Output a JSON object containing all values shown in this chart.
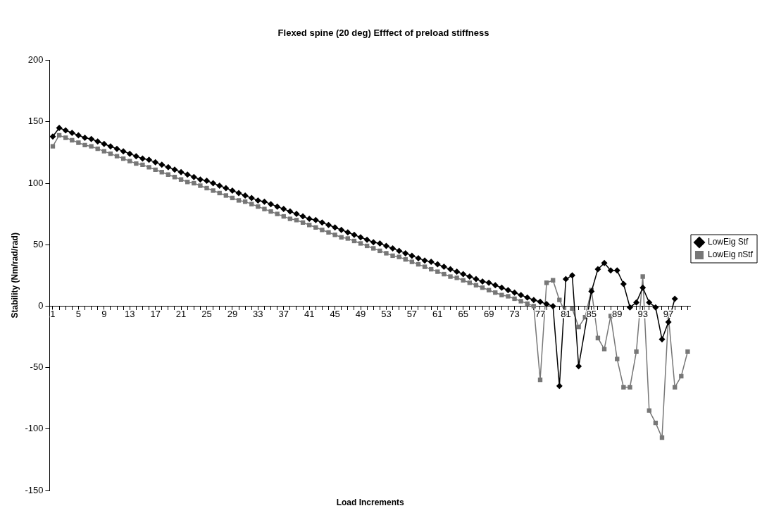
{
  "chart_data": {
    "type": "line",
    "title": "Flexed spine (20 deg) Efffect of preload stiffness",
    "xlabel": "Load Increments",
    "ylabel": "Stability (Nm/rad/rad)",
    "categories": [
      "1",
      null,
      null,
      null,
      "5",
      null,
      null,
      null,
      "9",
      null,
      null,
      null,
      "13",
      null,
      null,
      null,
      "17",
      null,
      null,
      null,
      "21",
      null,
      null,
      null,
      "25",
      null,
      null,
      null,
      "29",
      null,
      null,
      null,
      "33",
      null,
      null,
      null,
      "37",
      null,
      null,
      null,
      "41",
      null,
      null,
      null,
      "45",
      null,
      null,
      null,
      "49",
      null,
      null,
      null,
      "53",
      null,
      null,
      null,
      "57",
      null,
      null,
      null,
      "61",
      null,
      null,
      null,
      "65",
      null,
      null,
      null,
      "69",
      null,
      null,
      null,
      "73",
      null,
      null,
      null,
      "77",
      null,
      null,
      null,
      "81",
      null,
      null,
      null,
      "85",
      null,
      null,
      null,
      "89",
      null,
      null,
      null,
      "93",
      null,
      null,
      null,
      "97",
      null,
      null,
      null
    ],
    "series": [
      {
        "name": "LowEig Stf",
        "color": "#000000",
        "marker": "diamond",
        "values": [
          138,
          145,
          143,
          141,
          139,
          137,
          136,
          134,
          132,
          130,
          128,
          126,
          124,
          122,
          120,
          119,
          117,
          115,
          113,
          111,
          109,
          107,
          105,
          103,
          102,
          100,
          98,
          96,
          94,
          92,
          90,
          88,
          86,
          85,
          83,
          81,
          79,
          77,
          75,
          73,
          71,
          70,
          68,
          66,
          64,
          62,
          60,
          58,
          56,
          54,
          52,
          51,
          49,
          47,
          45,
          43,
          41,
          39,
          37,
          36,
          34,
          32,
          30,
          28,
          26,
          24,
          22,
          20,
          19,
          17,
          15,
          13,
          11,
          9,
          7,
          5,
          3.5,
          1.7,
          0,
          -65,
          22,
          25,
          -49,
          null,
          12,
          30,
          35,
          29,
          29,
          18,
          -1,
          3,
          15,
          3,
          -1,
          -27,
          -13,
          6,
          null,
          null
        ]
      },
      {
        "name": "LowEig nStf",
        "color": "#777777",
        "marker": "square",
        "values": [
          130,
          139,
          137,
          135,
          133,
          131,
          130,
          128,
          126,
          124,
          122,
          120,
          118,
          116,
          115,
          113,
          111,
          109,
          107,
          105,
          103,
          101,
          100,
          98,
          96,
          94,
          92,
          90,
          88,
          86,
          85,
          83,
          81,
          79,
          77,
          75,
          73,
          71,
          70,
          68,
          66,
          64,
          62,
          60,
          58,
          56,
          55,
          53,
          51,
          49,
          47,
          45,
          43,
          41,
          40,
          38,
          36,
          34,
          32,
          30,
          28,
          26,
          24,
          23,
          21,
          19,
          17,
          15,
          13,
          11,
          9,
          8,
          6,
          4,
          2,
          0,
          -60,
          19,
          21,
          5,
          -6,
          -2,
          -17,
          -9,
          13,
          -26,
          -35,
          -8,
          -43,
          -66,
          -66,
          -37,
          24,
          -85,
          -95,
          -107,
          -8,
          -66,
          -57,
          -37
        ]
      }
    ],
    "ylim": [
      -150,
      200
    ],
    "yticks": [
      -150,
      -100,
      -50,
      0,
      50,
      100,
      150,
      200
    ],
    "grid": false,
    "legend": "right",
    "line_style": "solid"
  }
}
